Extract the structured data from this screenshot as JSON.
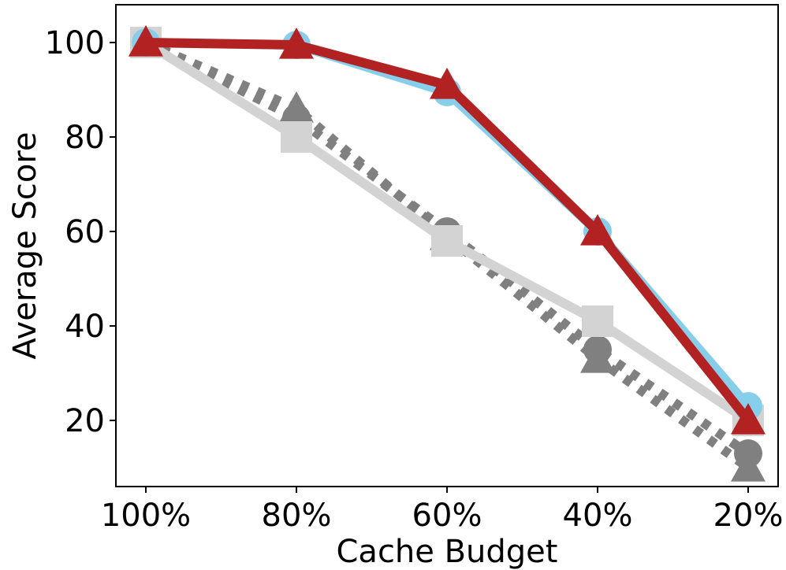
{
  "chart_data": {
    "type": "line",
    "title": "",
    "xlabel": "Cache Budget",
    "ylabel": "Average Score",
    "categories": [
      "100%",
      "80%",
      "60%",
      "40%",
      "20%"
    ],
    "yticks": [
      20,
      40,
      60,
      80,
      100
    ],
    "ylim": [
      6,
      108
    ],
    "grid": false,
    "legend": "none",
    "series": [
      {
        "values": [
          100,
          84,
          60,
          35,
          13
        ],
        "color": "#808080",
        "line_style": "dotted",
        "marker": "circle"
      },
      {
        "values": [
          100,
          86,
          59,
          33,
          10
        ],
        "color": "#808080",
        "line_style": "dotted",
        "marker": "triangle"
      },
      {
        "values": [
          100,
          80,
          58,
          41,
          20
        ],
        "color": "#d3d3d3",
        "line_style": "solid",
        "marker": "square"
      },
      {
        "values": [
          100,
          99.5,
          89.5,
          60,
          23
        ],
        "color": "#87ceeb",
        "line_style": "solid",
        "marker": "circle"
      },
      {
        "values": [
          100,
          99.5,
          91,
          60,
          20
        ],
        "color": "#b22222",
        "line_style": "solid",
        "marker": "triangle"
      }
    ]
  }
}
